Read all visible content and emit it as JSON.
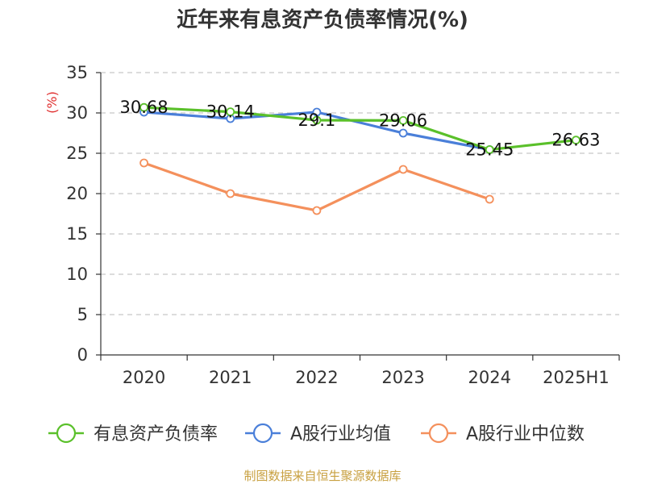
{
  "chart_data": {
    "type": "line",
    "title": "近年来有息资产负债率情况(%)",
    "y_unit_label": "(%)",
    "categories": [
      "2020",
      "2021",
      "2022",
      "2023",
      "2024",
      "2025H1"
    ],
    "ylim": [
      0,
      35
    ],
    "y_ticks": [
      "0",
      "5",
      "10",
      "15",
      "20",
      "25",
      "30",
      "35"
    ],
    "grid": true,
    "legend_position": "bottom",
    "series": [
      {
        "name": "有息资产负债率",
        "color": "#5ac02a",
        "values": [
          30.68,
          30.14,
          29.1,
          29.06,
          25.45,
          26.63
        ],
        "data_labels": [
          "30.68",
          "30.14",
          "29.1",
          "29.06",
          "25.45",
          "26.63"
        ]
      },
      {
        "name": "A股行业均值",
        "color": "#4a7fd9",
        "values": [
          30.1,
          29.3,
          30.1,
          27.5,
          25.45,
          null
        ],
        "data_labels": []
      },
      {
        "name": "A股行业中位数",
        "color": "#f4905c",
        "values": [
          23.8,
          20.0,
          17.9,
          23.0,
          19.3,
          null
        ],
        "data_labels": []
      }
    ],
    "source": "制图数据来自恒生聚源数据库"
  }
}
